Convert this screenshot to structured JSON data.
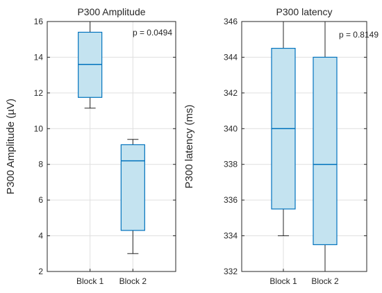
{
  "chart_data": [
    {
      "type": "box",
      "title": "P300 Amplitude",
      "ylabel": "P300 Amplitude (µV)",
      "xlabel": "",
      "categories": [
        "Block 1",
        "Block 2"
      ],
      "ylim": [
        2,
        16
      ],
      "yticks": [
        2,
        4,
        6,
        8,
        10,
        12,
        14,
        16
      ],
      "grid": true,
      "annotation": "p = 0.0494",
      "box_color": "#0072BD",
      "box_fill": "#c4e3f0",
      "boxes": [
        {
          "category": "Block 1",
          "min": 11.15,
          "q1": 11.75,
          "median": 13.6,
          "q3": 15.4,
          "max": 16.0
        },
        {
          "category": "Block 2",
          "min": 3.0,
          "q1": 4.3,
          "median": 8.2,
          "q3": 9.1,
          "max": 9.4
        }
      ]
    },
    {
      "type": "box",
      "title": "P300 latency",
      "ylabel": "P300 latency (ms)",
      "xlabel": "",
      "categories": [
        "Block 1",
        "Block 2"
      ],
      "ylim": [
        332,
        346
      ],
      "yticks": [
        332,
        334,
        336,
        338,
        340,
        342,
        344,
        346
      ],
      "grid": true,
      "annotation": "p = 0.8149",
      "box_color": "#0072BD",
      "box_fill": "#c4e3f0",
      "boxes": [
        {
          "category": "Block 1",
          "min": 334.0,
          "q1": 335.5,
          "median": 340.0,
          "q3": 344.5,
          "max": 346.0
        },
        {
          "category": "Block 2",
          "min": 332.0,
          "q1": 333.5,
          "median": 338.0,
          "q3": 344.0,
          "max": 346.0
        }
      ]
    }
  ]
}
